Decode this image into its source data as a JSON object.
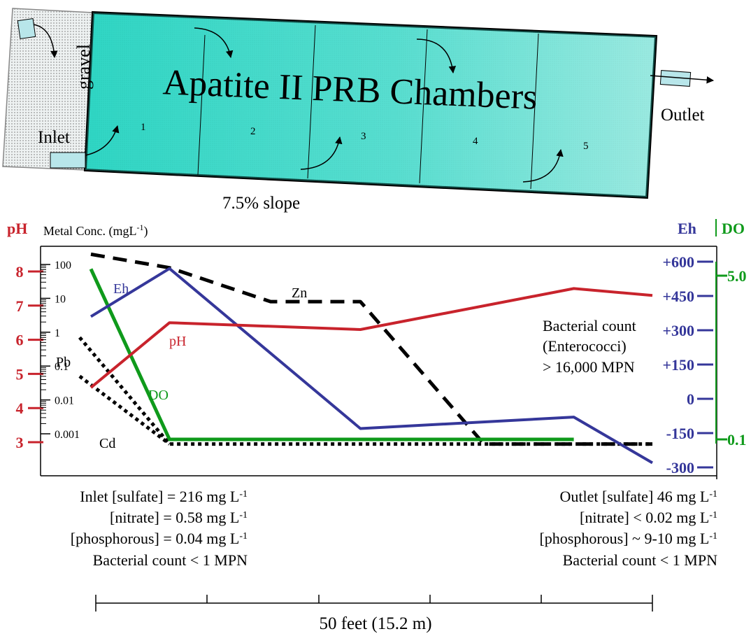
{
  "colors": {
    "pH": "#c8232c",
    "Eh": "#35379a",
    "DO": "#0f9a1b",
    "metal": "#000000",
    "chamber_fill": "#2fd6c4",
    "inlet_gravel_fill": "#e8ecec",
    "pipe": "#b8e6ea"
  },
  "icons": {
    "flow": "curved-arrow-icon",
    "pipe": "pipe-icon"
  },
  "prb": {
    "title": "Apatite II PRB Chambers",
    "gravel": "gravel",
    "inlet": "Inlet",
    "outlet": "Outlet",
    "slope": "7.5% slope",
    "chambers": [
      "1",
      "2",
      "3",
      "4",
      "5"
    ]
  },
  "chart_data": {
    "type": "line",
    "x": [
      0,
      1,
      2,
      3,
      4,
      5
    ],
    "metal_axis": {
      "label": "Metal Conc. (mgL",
      "label_sup": "-1",
      "label_close": ")",
      "ticks": [
        "100",
        "10",
        "1",
        "0.1",
        "0.01",
        "0.001"
      ],
      "scale": "log",
      "range": [
        0.001,
        100
      ]
    },
    "pH_axis": {
      "label": "pH",
      "ticks": [
        "8",
        "7",
        "6",
        "5",
        "4",
        "3"
      ],
      "range": [
        3,
        8
      ]
    },
    "Eh_axis": {
      "label": "Eh",
      "ticks": [
        "+600",
        "+450",
        "+300",
        "+150",
        "0",
        "-150",
        "-300"
      ],
      "range": [
        -300,
        600
      ]
    },
    "DO_axis": {
      "label": "DO",
      "ticks": [
        "5.0",
        "0.1"
      ],
      "range": [
        0.1,
        5.0
      ]
    },
    "series": [
      {
        "name": "pH",
        "points": [
          [
            0,
            4.6
          ],
          [
            0.7,
            6.5
          ],
          [
            2.4,
            6.3
          ],
          [
            4.3,
            7.5
          ],
          [
            5.0,
            7.3
          ]
        ]
      },
      {
        "name": "Eh",
        "points": [
          [
            0,
            360
          ],
          [
            0.7,
            570
          ],
          [
            2.4,
            -130
          ],
          [
            4.3,
            -80
          ],
          [
            5.0,
            -280
          ]
        ]
      },
      {
        "name": "DO",
        "points": [
          [
            0,
            5.2
          ],
          [
            0.7,
            0.1
          ],
          [
            4.3,
            0.1
          ]
        ]
      },
      {
        "name": "Zn",
        "points": [
          [
            0,
            200
          ],
          [
            0.7,
            80
          ],
          [
            1.6,
            8
          ],
          [
            2.4,
            8
          ],
          [
            3.5,
            0.0005
          ],
          [
            5.0,
            0.0005
          ]
        ]
      },
      {
        "name": "Pb",
        "points": [
          [
            -0.1,
            0.7
          ],
          [
            0.7,
            0.0005
          ],
          [
            5.0,
            0.0005
          ]
        ]
      },
      {
        "name": "Cd",
        "points": [
          [
            -0.1,
            0.05
          ],
          [
            0.7,
            0.0005
          ]
        ]
      }
    ],
    "annotation": [
      "Bacterial count",
      "(Enterococci)",
      "> 16,000 MPN"
    ]
  },
  "inlet_info": [
    {
      "text": "Inlet [sulfate] = 216  mg L",
      "sup": "-1"
    },
    {
      "text": "[nitrate] = 0.58 mg L",
      "sup": "-1"
    },
    {
      "text": "[phosphorous] = 0.04 mg L",
      "sup": "-1"
    },
    {
      "text": "Bacterial count < 1 MPN",
      "sup": ""
    }
  ],
  "outlet_info": [
    {
      "text": "Outlet [sulfate] 46 mg L",
      "sup": "-1"
    },
    {
      "text": "[nitrate] < 0.02 mg L",
      "sup": "-1"
    },
    {
      "text": "[phosphorous] ~ 9-10 mg L",
      "sup": "-1"
    },
    {
      "text": "Bacterial count < 1 MPN",
      "sup": ""
    }
  ],
  "scale_bar": {
    "label": "50 feet (15.2 m)"
  }
}
